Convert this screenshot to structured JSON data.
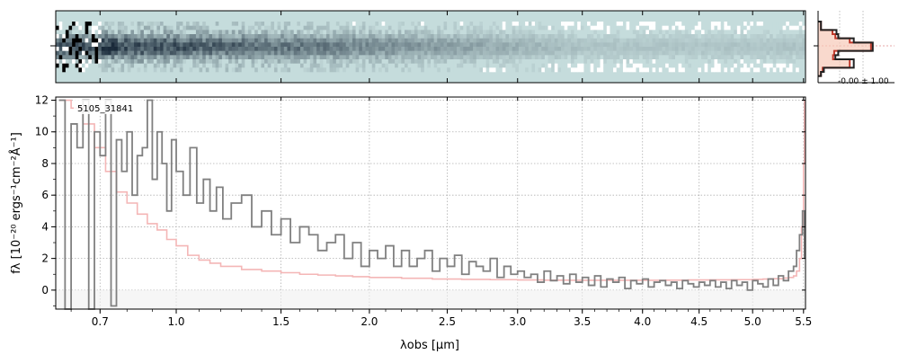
{
  "chart_data": [
    {
      "type": "heatmap",
      "title": "",
      "description_values": "2D spectrum cutout",
      "colormap": [
        "#ffffff",
        "#c5dcdc",
        "#1a2a3a"
      ],
      "background_color": "#c5dcdc",
      "center_row_label": "",
      "xlim_um": [
        0.55,
        5.52
      ]
    },
    {
      "type": "line",
      "title": "",
      "profile_label": "-0.00 ± 1.00",
      "profile_curves": [
        {
          "color": "#222222",
          "values": [
            0.05,
            0.05,
            0.32,
            0.35,
            0.62,
            0.95,
            0.95,
            0.35,
            0.3,
            0.62,
            0.62,
            0.1,
            0.05
          ]
        },
        {
          "color": "#c0392b",
          "values": [
            0.05,
            0.05,
            0.25,
            0.3,
            0.55,
            0.92,
            0.92,
            0.28,
            0.26,
            0.55,
            0.55,
            0.08,
            0.05
          ]
        }
      ]
    },
    {
      "type": "line",
      "title": "",
      "label_text": "5105_31841",
      "xlabel": "λobs [μm]",
      "ylabel": "fλ [10⁻²⁰ ergs⁻¹cm⁻²Å⁻¹]",
      "xtick_labels": [
        "0.7",
        "1.0",
        "1.5",
        "2.0",
        "2.5",
        "3.0",
        "3.5",
        "4.0",
        "4.5",
        "5.0",
        "5.5"
      ],
      "xtick_values": [
        0.7,
        1.0,
        1.5,
        2.0,
        2.5,
        3.0,
        3.5,
        4.0,
        4.5,
        5.0,
        5.5
      ],
      "ytick_labels": [
        "0",
        "2",
        "4",
        "6",
        "8",
        "10",
        "12"
      ],
      "ytick_values": [
        0,
        2,
        4,
        6,
        8,
        10,
        12
      ],
      "ylim": [
        -1.2,
        12.2
      ],
      "xlim": [
        0.55,
        5.52
      ],
      "grid": true,
      "series": [
        {
          "color": "#808080",
          "style": "steps",
          "x": [
            0.56,
            0.58,
            0.6,
            0.62,
            0.64,
            0.66,
            0.68,
            0.7,
            0.72,
            0.74,
            0.76,
            0.78,
            0.8,
            0.82,
            0.84,
            0.86,
            0.88,
            0.9,
            0.92,
            0.94,
            0.96,
            0.98,
            1.0,
            1.03,
            1.06,
            1.09,
            1.12,
            1.15,
            1.18,
            1.21,
            1.25,
            1.3,
            1.35,
            1.4,
            1.45,
            1.5,
            1.55,
            1.6,
            1.65,
            1.7,
            1.75,
            1.8,
            1.85,
            1.9,
            1.95,
            2.0,
            2.05,
            2.1,
            2.15,
            2.2,
            2.25,
            2.3,
            2.35,
            2.4,
            2.45,
            2.5,
            2.55,
            2.6,
            2.65,
            2.7,
            2.75,
            2.8,
            2.85,
            2.9,
            2.95,
            3.0,
            3.05,
            3.1,
            3.15,
            3.2,
            3.25,
            3.3,
            3.35,
            3.4,
            3.45,
            3.5,
            3.55,
            3.6,
            3.65,
            3.7,
            3.75,
            3.8,
            3.85,
            3.9,
            3.95,
            4.0,
            4.05,
            4.1,
            4.15,
            4.2,
            4.25,
            4.3,
            4.35,
            4.4,
            4.45,
            4.5,
            4.55,
            4.6,
            4.65,
            4.7,
            4.75,
            4.8,
            4.85,
            4.9,
            4.95,
            5.0,
            5.05,
            5.1,
            5.15,
            5.2,
            5.25,
            5.3,
            5.35,
            5.4,
            5.43,
            5.46,
            5.49,
            5.51
          ],
          "y": [
            12.0,
            -1.2,
            10.5,
            9.0,
            12.0,
            -1.2,
            10.0,
            8.5,
            12.0,
            -1.0,
            9.5,
            7.5,
            10.0,
            6.0,
            8.5,
            9.0,
            12.0,
            7.0,
            10.0,
            8.0,
            5.0,
            9.5,
            7.5,
            6.0,
            9.0,
            5.5,
            7.0,
            5.0,
            6.5,
            4.5,
            5.5,
            6.0,
            4.0,
            5.0,
            3.5,
            4.5,
            3.0,
            4.0,
            3.5,
            2.5,
            3.0,
            3.5,
            2.0,
            3.0,
            1.5,
            2.5,
            2.0,
            2.8,
            1.5,
            2.5,
            1.5,
            2.0,
            2.5,
            1.2,
            2.0,
            1.5,
            2.2,
            1.0,
            1.8,
            1.5,
            1.2,
            2.0,
            0.8,
            1.5,
            1.0,
            1.2,
            0.8,
            1.0,
            0.5,
            1.2,
            0.6,
            0.9,
            0.4,
            1.0,
            0.5,
            0.8,
            0.3,
            0.9,
            0.2,
            0.7,
            0.5,
            0.8,
            0.1,
            0.6,
            0.4,
            0.7,
            0.2,
            0.5,
            0.6,
            0.3,
            0.5,
            0.1,
            0.6,
            0.4,
            0.2,
            0.5,
            0.3,
            0.6,
            0.2,
            0.5,
            0.1,
            0.6,
            0.3,
            0.5,
            0.0,
            0.6,
            0.4,
            0.2,
            0.7,
            0.3,
            0.9,
            0.6,
            1.2,
            1.5,
            2.5,
            3.5,
            5.0,
            2.0
          ]
        },
        {
          "color": "#f4b6b6",
          "style": "steps",
          "x": [
            0.56,
            0.6,
            0.64,
            0.68,
            0.72,
            0.76,
            0.8,
            0.84,
            0.88,
            0.92,
            0.96,
            1.0,
            1.05,
            1.1,
            1.15,
            1.2,
            1.3,
            1.4,
            1.5,
            1.6,
            1.7,
            1.8,
            1.9,
            2.0,
            2.2,
            2.4,
            2.6,
            2.8,
            3.0,
            3.2,
            3.4,
            3.6,
            3.8,
            4.0,
            4.2,
            4.4,
            4.6,
            4.8,
            5.0,
            5.1,
            5.2,
            5.3,
            5.35,
            5.4,
            5.43,
            5.46,
            5.48,
            5.5,
            5.51
          ],
          "y": [
            12.0,
            11.5,
            10.5,
            9.0,
            7.5,
            6.2,
            5.5,
            4.8,
            4.2,
            3.8,
            3.2,
            2.8,
            2.2,
            1.9,
            1.7,
            1.5,
            1.3,
            1.2,
            1.1,
            1.0,
            0.95,
            0.9,
            0.85,
            0.8,
            0.75,
            0.7,
            0.68,
            0.66,
            0.64,
            0.63,
            0.62,
            0.62,
            0.62,
            0.62,
            0.63,
            0.64,
            0.65,
            0.66,
            0.68,
            0.7,
            0.72,
            0.76,
            0.8,
            0.9,
            1.2,
            2.0,
            4.0,
            8.0,
            12.0
          ]
        }
      ]
    }
  ]
}
